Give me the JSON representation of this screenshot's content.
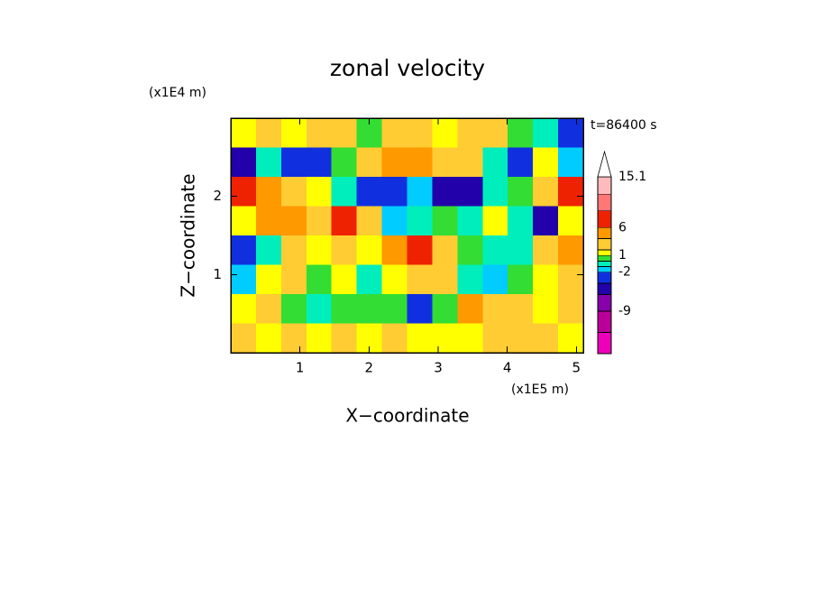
{
  "chart_data": {
    "type": "contour",
    "title": "zonal velocity",
    "x_label": "X−coordinate",
    "y_label": "Z−coordinate",
    "x_unit": "(x1E5 m)",
    "y_unit": "(x1E4 m)",
    "annotation": "t=86400 s",
    "xlim": [
      0,
      5.1
    ],
    "ylim": [
      0,
      3
    ],
    "xticks": [
      1,
      2,
      3,
      4,
      5
    ],
    "yticks": [
      1,
      2
    ],
    "z": [
      [
        1,
        3,
        1.5,
        2.5,
        3,
        0.5,
        3,
        2,
        1.5,
        3,
        2,
        0.5,
        -1,
        -3
      ],
      [
        -5,
        -1,
        -4,
        -3,
        0.5,
        3,
        4,
        5,
        3,
        2,
        -1,
        -4,
        1,
        -2
      ],
      [
        7,
        4,
        3,
        1.5,
        -1,
        -3,
        -3,
        -2,
        -5,
        -6,
        -1,
        0.5,
        3,
        7
      ],
      [
        1,
        4,
        5,
        3,
        7,
        2,
        -2,
        -1,
        0.5,
        -1,
        1,
        -1,
        -5,
        1
      ],
      [
        -4,
        -1,
        2,
        1,
        3,
        1,
        4,
        6,
        3,
        0,
        -1,
        -1,
        2,
        4
      ],
      [
        -2,
        1,
        3,
        0,
        1,
        -1,
        1.5,
        3,
        2,
        -1,
        -1.5,
        0.5,
        1,
        3
      ],
      [
        1,
        2,
        0,
        -1,
        0.5,
        0,
        0.5,
        -3,
        0.5,
        4,
        3,
        2,
        1.5,
        2
      ],
      [
        2,
        1,
        3,
        1.5,
        2,
        1,
        2,
        1,
        1.5,
        1.5,
        2,
        3,
        2.5,
        1
      ]
    ],
    "colorbar": {
      "levels": [
        -16.6,
        -12.8,
        -9,
        -6,
        -4,
        -2,
        -1,
        0,
        1,
        2,
        4,
        6,
        9,
        12,
        15.1
      ],
      "colors": [
        "#ee00bb",
        "#bb0099",
        "#8800aa",
        "#2200aa",
        "#1030e0",
        "#00ccff",
        "#00eebb",
        "#33dd33",
        "#ffff00",
        "#ffcc33",
        "#ff9900",
        "#ee2200",
        "#ff7777",
        "#ffbbbb"
      ],
      "over_color": "#ffffff",
      "ticks": [
        15.1,
        6,
        1,
        -2,
        -9
      ]
    }
  }
}
